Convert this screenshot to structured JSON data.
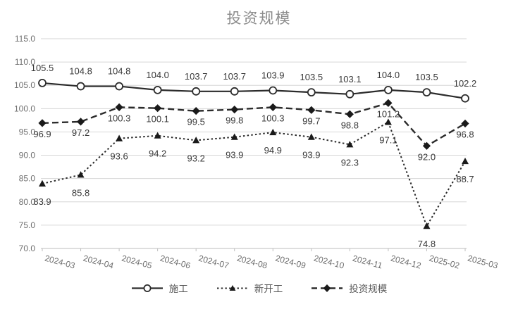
{
  "chart_data": {
    "type": "line",
    "title": "投资规模",
    "categories": [
      "2024-03",
      "2024-04",
      "2024-05",
      "2024-06",
      "2024-07",
      "2024-08",
      "2024-09",
      "2024-10",
      "2024-11",
      "2024-12",
      "2025-02",
      "2025-03"
    ],
    "series": [
      {
        "name": "施工",
        "marker": "circle",
        "line_style": "solid",
        "values": [
          105.5,
          104.8,
          104.8,
          104.0,
          103.7,
          103.7,
          103.9,
          103.5,
          103.1,
          104.0,
          103.5,
          102.2
        ]
      },
      {
        "name": "新开工",
        "marker": "triangle",
        "line_style": "dotted",
        "values": [
          83.9,
          85.8,
          93.6,
          94.2,
          93.2,
          93.9,
          94.9,
          93.9,
          92.3,
          97.1,
          74.8,
          88.7
        ]
      },
      {
        "name": "投资规模",
        "marker": "diamond",
        "line_style": "dashed",
        "values": [
          96.9,
          97.2,
          100.3,
          100.1,
          99.5,
          99.8,
          100.3,
          99.7,
          98.8,
          101.2,
          92.0,
          96.8
        ]
      }
    ],
    "ylim": [
      70.0,
      115.0
    ],
    "y_tick_step": 5.0,
    "y_tick_labels": [
      "115.0",
      "110.0",
      "105.0",
      "100.0",
      "95.0",
      "90.0",
      "85.0",
      "80.0",
      "75.0",
      "70.0"
    ],
    "data_labels": true,
    "grid": true,
    "legend_position": "bottom",
    "x_label_rotation_deg": 15
  },
  "colors": {
    "series_stroke": "#2b2b2b",
    "marker_fill": "#1a1a1a",
    "grid": "#d6d6d6",
    "axis_line": "#bdbdbd",
    "axis_text": "#6e6e6e",
    "data_label_text": "#383838",
    "title_text": "#8c8c8c",
    "legend_text": "#595959",
    "background": "#ffffff"
  }
}
